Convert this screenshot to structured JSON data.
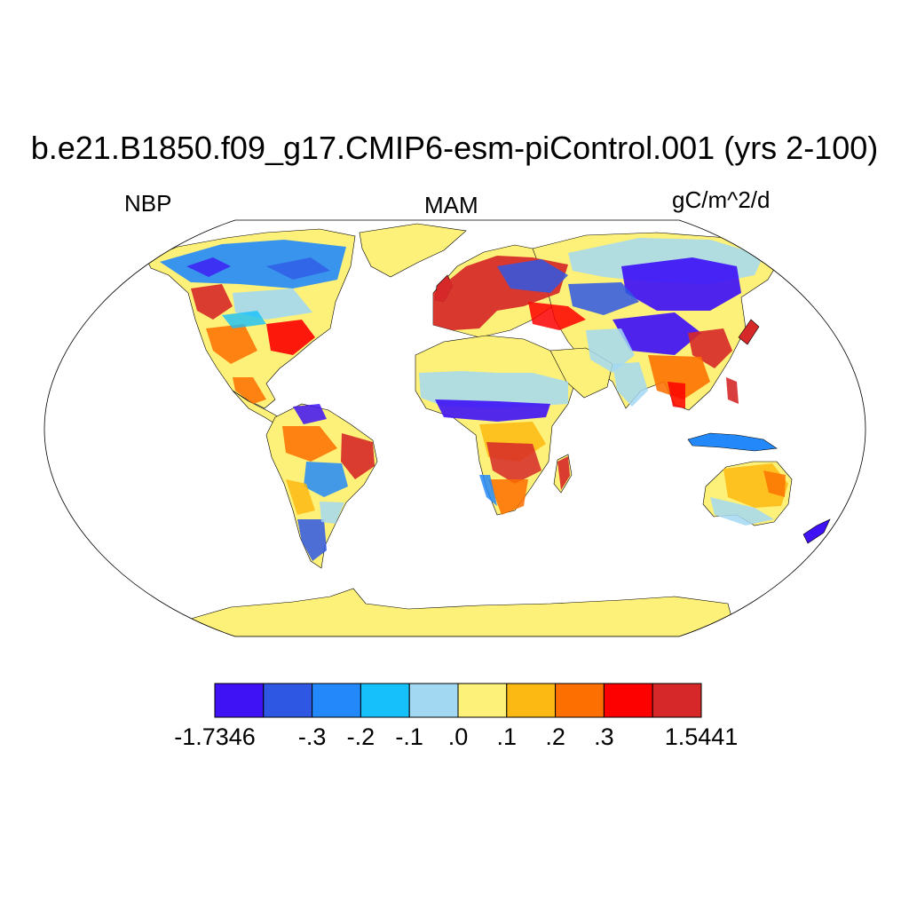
{
  "title": "b.e21.B1850.f09_g17.CMIP6-esm-piControl.001 (yrs 2-100)",
  "left_label": "NBP",
  "center_label": "MAM",
  "right_label": "gC/m^2/d",
  "colorbar": {
    "colors": [
      "#3f12f6",
      "#2e57e4",
      "#2389fa",
      "#16c0fb",
      "#a3d8f2",
      "#fef17a",
      "#fdb913",
      "#fd6f00",
      "#fd0000",
      "#d62828"
    ],
    "tick_labels": [
      "-1.7346",
      "-.3",
      "-.2",
      "-.1",
      ".0",
      ".1",
      ".2",
      ".3",
      "1.5441"
    ],
    "tick_boundaries": [
      0,
      2,
      3,
      4,
      5,
      6,
      7,
      8,
      10
    ]
  },
  "chart_data": {
    "type": "heatmap",
    "projection": "robinson",
    "variable": "NBP",
    "season": "MAM",
    "units": "gC/m^2/d",
    "value_range": [
      -1.7346,
      1.5441
    ],
    "levels": [
      -1.7346,
      -0.4,
      -0.3,
      -0.2,
      -0.1,
      0.0,
      0.1,
      0.2,
      0.3,
      0.4,
      1.5441
    ]
  }
}
